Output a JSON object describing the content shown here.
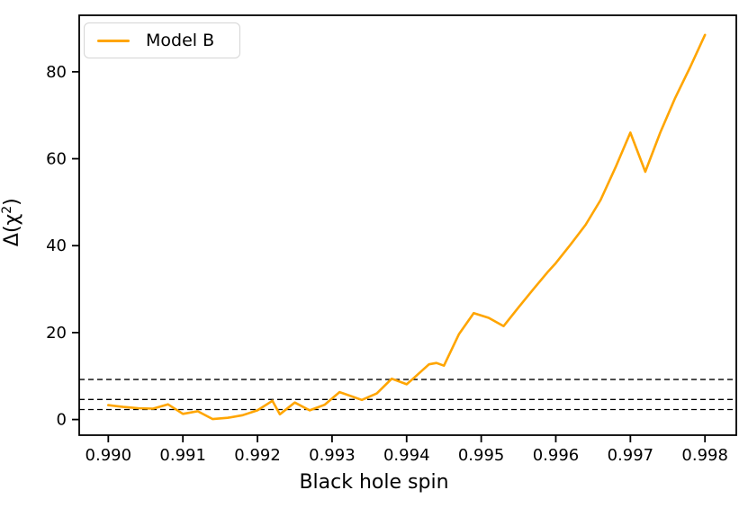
{
  "figure": {
    "xlabel": "Black hole spin",
    "ylabel_open": "Δ(χ",
    "ylabel_sup": "2",
    "ylabel_close": ")",
    "legend": {
      "label": "Model B",
      "line_color": "#ffa500"
    }
  },
  "chart_data": {
    "type": "line",
    "title": "",
    "xlabel": "Black hole spin",
    "ylabel": "Δ(χ²)",
    "xlim": [
      0.98961,
      0.99842
    ],
    "ylim": [
      -3.6,
      93
    ],
    "grid": false,
    "legend_position": "upper left",
    "x_ticks": [
      0.99,
      0.991,
      0.992,
      0.993,
      0.994,
      0.995,
      0.996,
      0.997,
      0.998
    ],
    "x_tick_labels": [
      "0.990",
      "0.991",
      "0.992",
      "0.993",
      "0.994",
      "0.995",
      "0.996",
      "0.997",
      "0.998"
    ],
    "y_ticks": [
      0,
      20,
      40,
      60,
      80
    ],
    "y_tick_labels": [
      "0",
      "20",
      "40",
      "60",
      "80"
    ],
    "hlines": {
      "style": "dashed",
      "color": "#000000",
      "values": [
        2.3,
        4.61,
        9.21
      ]
    },
    "series": [
      {
        "name": "Model B",
        "color": "#ffa500",
        "x": [
          0.99,
          0.9902,
          0.9904,
          0.9906,
          0.9908,
          0.991,
          0.9912,
          0.9914,
          0.9916,
          0.9918,
          0.992,
          0.9922,
          0.9923,
          0.9925,
          0.9927,
          0.9929,
          0.9931,
          0.9934,
          0.9936,
          0.9938,
          0.994,
          0.9941,
          0.9943,
          0.9944,
          0.9945,
          0.9947,
          0.9949,
          0.9951,
          0.9953,
          0.9955,
          0.9957,
          0.9959,
          0.996,
          0.9962,
          0.9964,
          0.9966,
          0.9968,
          0.997,
          0.9972,
          0.9974,
          0.9976,
          0.9978,
          0.998
        ],
        "y": [
          3.3,
          2.9,
          2.6,
          2.5,
          3.5,
          1.3,
          1.9,
          0.1,
          0.4,
          1.0,
          2.1,
          4.3,
          1.2,
          3.9,
          2.1,
          3.4,
          6.3,
          4.5,
          6.0,
          9.4,
          8.1,
          9.6,
          12.7,
          13.0,
          12.4,
          19.6,
          24.5,
          23.4,
          21.5,
          25.8,
          30.0,
          34.1,
          36.0,
          40.3,
          44.8,
          50.5,
          58.0,
          66.0,
          57.0,
          66.0,
          74.0,
          81.0,
          88.5
        ]
      }
    ]
  }
}
